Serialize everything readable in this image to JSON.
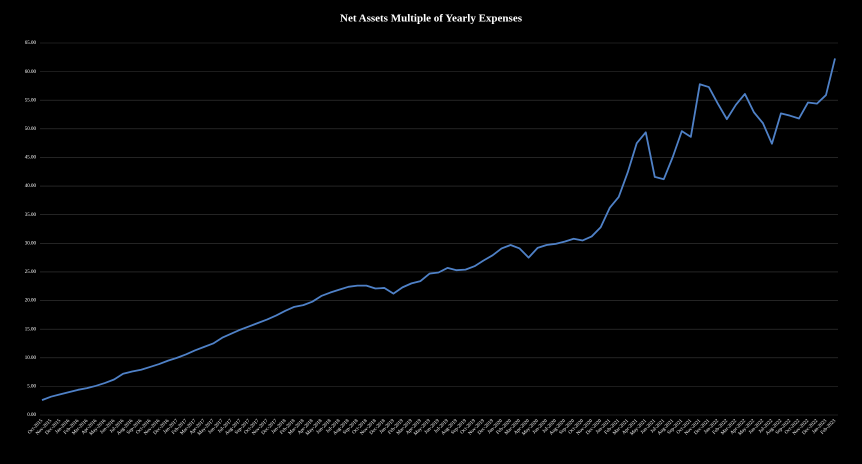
{
  "chart_data": {
    "type": "line",
    "title": "Net Assets Multiple of Yearly Expenses",
    "categories": [
      "Oct-2015",
      "Nov-2015",
      "Dec-2015",
      "Jan-2016",
      "Feb-2016",
      "Mar-2016",
      "Apr-2016",
      "May-2016",
      "Jun-2016",
      "Jul-2016",
      "Aug-2016",
      "Sep-2016",
      "Oct-2016",
      "Nov-2016",
      "Dec-2016",
      "Jan-2017",
      "Feb-2017",
      "Mar-2017",
      "Apr-2017",
      "May-2017",
      "Jun-2017",
      "Jul-2017",
      "Aug-2017",
      "Sep-2017",
      "Oct-2017",
      "Nov-2017",
      "Dec-2017",
      "Jan-2018",
      "Feb-2018",
      "Mar-2018",
      "Apr-2018",
      "May-2018",
      "Jun-2018",
      "Jul-2018",
      "Aug-2018",
      "Sep-2018",
      "Oct-2018",
      "Nov-2018",
      "Dec-2018",
      "Jan-2019",
      "Feb-2019",
      "Mar-2019",
      "Apr-2019",
      "May-2019",
      "Jun-2019",
      "Jul-2019",
      "Aug-2019",
      "Sep-2019",
      "Oct-2019",
      "Nov-2019",
      "Dec-2019",
      "Jan-2020",
      "Feb-2020",
      "Mar-2020",
      "Apr-2020",
      "May-2020",
      "Jun-2020",
      "Jul-2020",
      "Aug-2020",
      "Sep-2020",
      "Oct-2020",
      "Nov-2020",
      "Dec-2020",
      "Jan-2021",
      "Feb-2021",
      "Mar-2021",
      "Apr-2021",
      "May-2021",
      "Jun-2021",
      "Jul-2021",
      "Aug-2021",
      "Sep-2021",
      "Oct-2021",
      "Nov-2021",
      "Dec-2021",
      "Jan-2022",
      "Feb-2022",
      "Mar-2022",
      "Apr-2022",
      "May-2022",
      "Jun-2022",
      "Jul-2022",
      "Aug-2022",
      "Sep-2022",
      "Oct-2022",
      "Nov-2022",
      "Dec-2022",
      "Jan-2023",
      "Feb-2023"
    ],
    "values": [
      2.6,
      3.2,
      3.6,
      4.0,
      4.4,
      4.7,
      5.1,
      5.6,
      6.2,
      7.2,
      7.6,
      7.9,
      8.4,
      8.9,
      9.5,
      10.0,
      10.6,
      11.3,
      11.9,
      12.5,
      13.5,
      14.2,
      14.9,
      15.5,
      16.1,
      16.7,
      17.4,
      18.2,
      18.9,
      19.2,
      19.8,
      20.8,
      21.4,
      21.9,
      22.4,
      22.6,
      22.6,
      22.1,
      22.2,
      21.2,
      22.3,
      23.0,
      23.4,
      24.7,
      24.9,
      25.7,
      25.3,
      25.4,
      26.0,
      27.0,
      27.9,
      29.1,
      29.7,
      29.1,
      27.5,
      29.2,
      29.7,
      29.9,
      30.3,
      30.8,
      30.5,
      31.2,
      32.8,
      36.2,
      38.1,
      42.4,
      47.5,
      49.4,
      41.6,
      41.2,
      45.1,
      49.6,
      48.6,
      57.8,
      57.3,
      54.4,
      51.7,
      54.2,
      56.1,
      52.9,
      51.0,
      47.4,
      52.7,
      52.3,
      51.8,
      54.6,
      54.4,
      55.9,
      62.3
    ],
    "color": "#4f81c7",
    "ylim": [
      0,
      65
    ],
    "yticks": [
      {
        "value": 0,
        "label": "0.00"
      },
      {
        "value": 5,
        "label": "5.00"
      },
      {
        "value": 10,
        "label": "10.00"
      },
      {
        "value": 15,
        "label": "15.00"
      },
      {
        "value": 20,
        "label": "20.00"
      },
      {
        "value": 25,
        "label": "25.00"
      },
      {
        "value": 30,
        "label": "30.00"
      },
      {
        "value": 35,
        "label": "35.00"
      },
      {
        "value": 40,
        "label": "40.00"
      },
      {
        "value": 45,
        "label": "45.00"
      },
      {
        "value": 50,
        "label": "50.00"
      },
      {
        "value": 55,
        "label": "55.00"
      },
      {
        "value": 60,
        "label": "60.00"
      },
      {
        "value": 65,
        "label": "65.00"
      }
    ],
    "grid": true
  }
}
